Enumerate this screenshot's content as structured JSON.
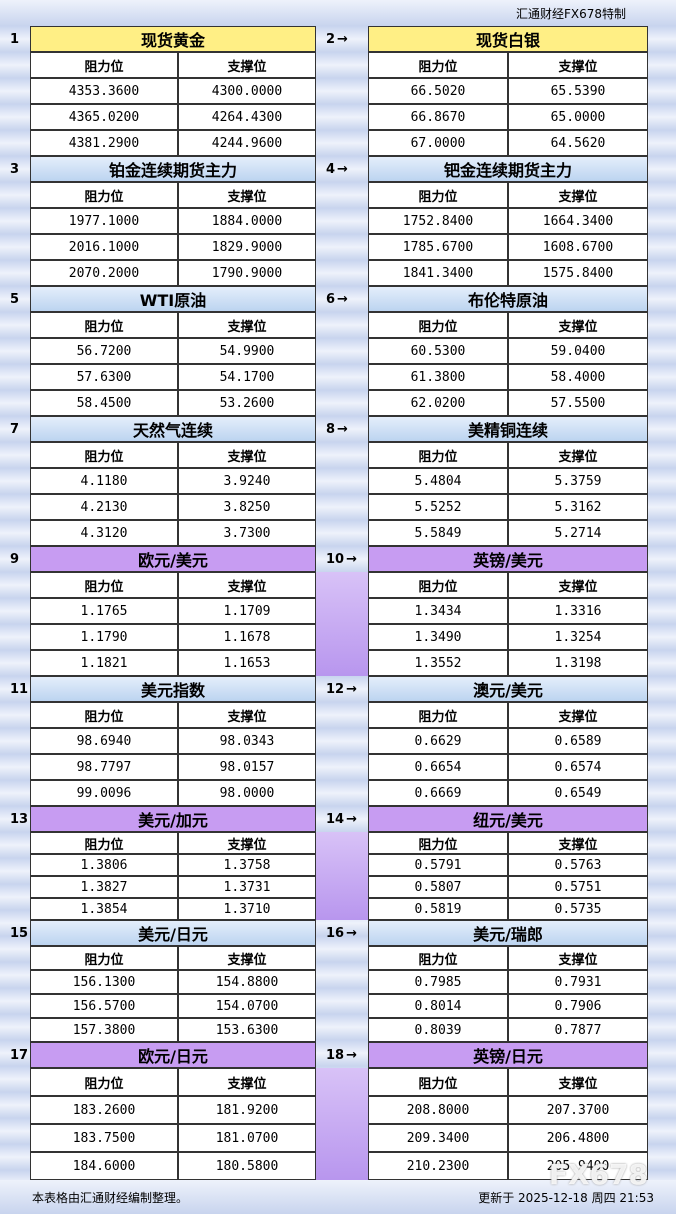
{
  "header": {
    "title": "汇通财经FX678特制"
  },
  "panels": [
    {
      "number": "1",
      "title": "现货黄金",
      "columns": [
        "阻力位",
        "支撑位"
      ],
      "rows": [
        [
          "4353.3600",
          "4300.0000"
        ],
        [
          "4365.0200",
          "4264.4300"
        ],
        [
          "4381.2900",
          "4244.9600"
        ]
      ]
    },
    {
      "number": "2",
      "title": "现货白银",
      "columns": [
        "阻力位",
        "支撑位"
      ],
      "rows": [
        [
          "66.5020",
          "65.5390"
        ],
        [
          "66.8670",
          "65.0000"
        ],
        [
          "67.0000",
          "64.5620"
        ]
      ]
    },
    {
      "number": "3",
      "title": "铂金连续期货主力",
      "columns": [
        "阻力位",
        "支撑位"
      ],
      "rows": [
        [
          "1977.1000",
          "1884.0000"
        ],
        [
          "2016.1000",
          "1829.9000"
        ],
        [
          "2070.2000",
          "1790.9000"
        ]
      ]
    },
    {
      "number": "4",
      "title": "钯金连续期货主力",
      "columns": [
        "阻力位",
        "支撑位"
      ],
      "rows": [
        [
          "1752.8400",
          "1664.3400"
        ],
        [
          "1785.6700",
          "1608.6700"
        ],
        [
          "1841.3400",
          "1575.8400"
        ]
      ]
    },
    {
      "number": "5",
      "title": "WTI原油",
      "columns": [
        "阻力位",
        "支撑位"
      ],
      "rows": [
        [
          "56.7200",
          "54.9900"
        ],
        [
          "57.6300",
          "54.1700"
        ],
        [
          "58.4500",
          "53.2600"
        ]
      ]
    },
    {
      "number": "6",
      "title": "布伦特原油",
      "columns": [
        "阻力位",
        "支撑位"
      ],
      "rows": [
        [
          "60.5300",
          "59.0400"
        ],
        [
          "61.3800",
          "58.4000"
        ],
        [
          "62.0200",
          "57.5500"
        ]
      ]
    },
    {
      "number": "7",
      "title": "天然气连续",
      "columns": [
        "阻力位",
        "支撑位"
      ],
      "rows": [
        [
          "4.1180",
          "3.9240"
        ],
        [
          "4.2130",
          "3.8250"
        ],
        [
          "4.3120",
          "3.7300"
        ]
      ]
    },
    {
      "number": "8",
      "title": "美精铜连续",
      "columns": [
        "阻力位",
        "支撑位"
      ],
      "rows": [
        [
          "5.4804",
          "5.3759"
        ],
        [
          "5.5252",
          "5.3162"
        ],
        [
          "5.5849",
          "5.2714"
        ]
      ]
    },
    {
      "number": "9",
      "title": "欧元/美元",
      "columns": [
        "阻力位",
        "支撑位"
      ],
      "rows": [
        [
          "1.1765",
          "1.1709"
        ],
        [
          "1.1790",
          "1.1678"
        ],
        [
          "1.1821",
          "1.1653"
        ]
      ]
    },
    {
      "number": "10",
      "title": "英镑/美元",
      "columns": [
        "阻力位",
        "支撑位"
      ],
      "rows": [
        [
          "1.3434",
          "1.3316"
        ],
        [
          "1.3490",
          "1.3254"
        ],
        [
          "1.3552",
          "1.3198"
        ]
      ]
    },
    {
      "number": "11",
      "title": "美元指数",
      "columns": [
        "阻力位",
        "支撑位"
      ],
      "rows": [
        [
          "98.6940",
          "98.0343"
        ],
        [
          "98.7797",
          "98.0157"
        ],
        [
          "99.0096",
          "98.0000"
        ]
      ]
    },
    {
      "number": "12",
      "title": "澳元/美元",
      "columns": [
        "阻力位",
        "支撑位"
      ],
      "rows": [
        [
          "0.6629",
          "0.6589"
        ],
        [
          "0.6654",
          "0.6574"
        ],
        [
          "0.6669",
          "0.6549"
        ]
      ]
    },
    {
      "number": "13",
      "title": "美元/加元",
      "columns": [
        "阻力位",
        "支撑位"
      ],
      "rows": [
        [
          "1.3806",
          "1.3758"
        ],
        [
          "1.3827",
          "1.3731"
        ],
        [
          "1.3854",
          "1.3710"
        ]
      ]
    },
    {
      "number": "14",
      "title": "纽元/美元",
      "columns": [
        "阻力位",
        "支撑位"
      ],
      "rows": [
        [
          "0.5791",
          "0.5763"
        ],
        [
          "0.5807",
          "0.5751"
        ],
        [
          "0.5819",
          "0.5735"
        ]
      ]
    },
    {
      "number": "15",
      "title": "美元/日元",
      "columns": [
        "阻力位",
        "支撑位"
      ],
      "rows": [
        [
          "156.1300",
          "154.8800"
        ],
        [
          "156.5700",
          "154.0700"
        ],
        [
          "157.3800",
          "153.6300"
        ]
      ]
    },
    {
      "number": "16",
      "title": "美元/瑞郎",
      "columns": [
        "阻力位",
        "支撑位"
      ],
      "rows": [
        [
          "0.7985",
          "0.7931"
        ],
        [
          "0.8014",
          "0.7906"
        ],
        [
          "0.8039",
          "0.7877"
        ]
      ]
    },
    {
      "number": "17",
      "title": "欧元/日元",
      "columns": [
        "阻力位",
        "支撑位"
      ],
      "rows": [
        [
          "183.2600",
          "181.9200"
        ],
        [
          "183.7500",
          "181.0700"
        ],
        [
          "184.6000",
          "180.5800"
        ]
      ]
    },
    {
      "number": "18",
      "title": "英镑/日元",
      "columns": [
        "阻力位",
        "支撑位"
      ],
      "rows": [
        [
          "208.8000",
          "207.3700"
        ],
        [
          "209.3400",
          "206.4800"
        ],
        [
          "210.2300",
          "205.9400"
        ]
      ]
    }
  ],
  "footer": {
    "note": "本表格由汇通财经编制整理。",
    "updated": "更新于 2025-12-18 周四 21:53",
    "watermark": "FX678"
  }
}
